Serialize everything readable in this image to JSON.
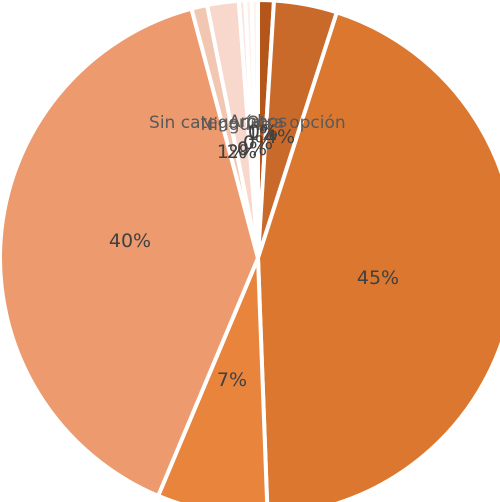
{
  "chart_data": {
    "type": "pie",
    "title": "",
    "legend": "none",
    "slices": [
      {
        "label": "",
        "value": 1,
        "display": "1%",
        "color": "#b4561a"
      },
      {
        "label": "",
        "value": 4,
        "display": "4%",
        "color": "#c9692a"
      },
      {
        "label": "",
        "value": 45,
        "display": "45%",
        "color": "#db772e"
      },
      {
        "label": "",
        "value": 7,
        "display": "7%",
        "color": "#e9843c"
      },
      {
        "label": "",
        "value": 40,
        "display": "40%",
        "color": "#ec9a6e"
      },
      {
        "label": "",
        "value": 1,
        "display": "1%",
        "color": "#f2c7b2"
      },
      {
        "label": "Sin categoría",
        "value": 2,
        "display": "2%",
        "color": "#f8d8cc"
      },
      {
        "label": "Ninguna",
        "value": 0,
        "display": "0%",
        "color": "#fbe6dd"
      },
      {
        "label": "Ambos",
        "value": 0,
        "display": "0%",
        "color": "#fdeee7"
      },
      {
        "label": "Otra opción",
        "value": 0,
        "display": "0%",
        "color": "#fef4ef"
      }
    ],
    "colors": {
      "separator": "#ffffff",
      "label": "#404040"
    }
  }
}
